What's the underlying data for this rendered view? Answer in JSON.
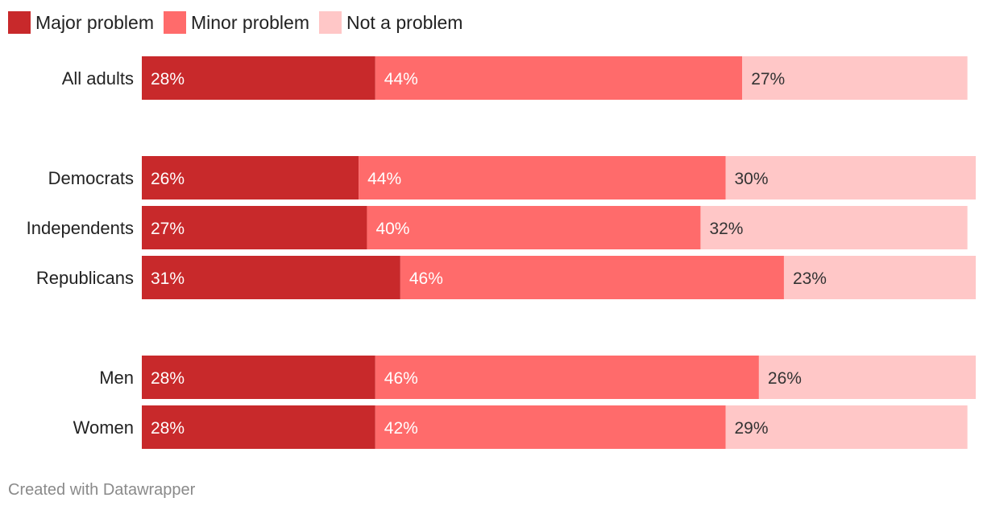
{
  "legend": [
    {
      "label": "Major problem",
      "color": "#c8292b"
    },
    {
      "label": "Minor problem",
      "color": "#ff6b6b"
    },
    {
      "label": "Not a problem",
      "color": "#ffc7c7"
    }
  ],
  "chart_data": {
    "type": "bar",
    "orientation": "horizontal",
    "stacked": true,
    "categories": [
      "All adults",
      "Democrats",
      "Independents",
      "Republicans",
      "Men",
      "Women"
    ],
    "groups": [
      [
        "All adults"
      ],
      [
        "Democrats",
        "Independents",
        "Republicans"
      ],
      [
        "Men",
        "Women"
      ]
    ],
    "series": [
      {
        "name": "Major problem",
        "values": [
          28,
          26,
          27,
          31,
          28,
          28
        ],
        "color": "#c8292b",
        "label_color": "#ffffff"
      },
      {
        "name": "Minor problem",
        "values": [
          44,
          44,
          40,
          46,
          46,
          42
        ],
        "color": "#ff6b6b",
        "label_color": "#ffffff"
      },
      {
        "name": "Not a problem",
        "values": [
          27,
          30,
          32,
          23,
          26,
          29
        ],
        "color": "#ffc7c7",
        "label_color": "#333333"
      }
    ],
    "value_suffix": "%",
    "xlim": [
      0,
      100
    ]
  },
  "footer": {
    "credit": "Created with Datawrapper"
  }
}
